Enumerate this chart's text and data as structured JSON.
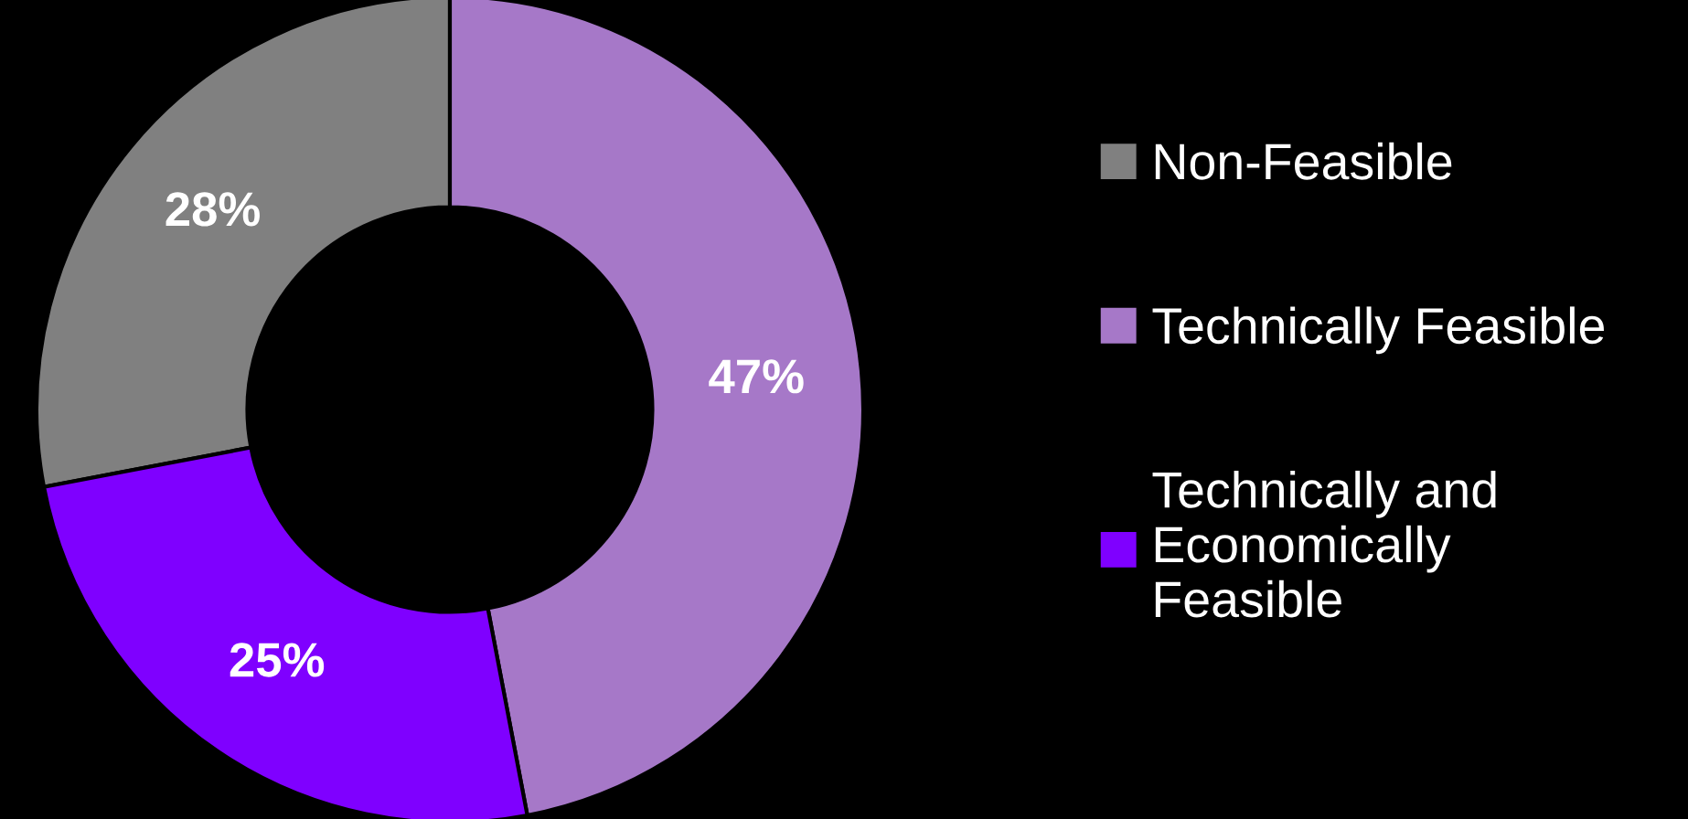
{
  "chart_data": {
    "type": "donut",
    "categories": [
      "Non-Feasible",
      "Technically Feasible",
      "Technically and\nEconomically\nFeasible"
    ],
    "values": [
      28,
      47,
      25
    ],
    "colors": [
      "#808080",
      "#a678c8",
      "#7f00ff"
    ],
    "value_labels": [
      "28%",
      "47%",
      "25%"
    ],
    "legend": "right"
  }
}
